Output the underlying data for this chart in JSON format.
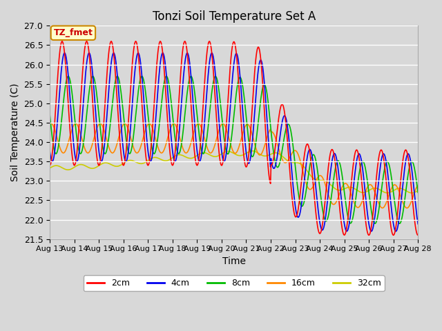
{
  "title": "Tonzi Soil Temperature Set A",
  "xlabel": "Time",
  "ylabel": "Soil Temperature (C)",
  "ylim": [
    21.5,
    27.0
  ],
  "background_color": "#d8d8d8",
  "plot_bg_color": "#d8d8d8",
  "grid_color": "#ffffff",
  "colors": {
    "2cm": "#ff0000",
    "4cm": "#0000ee",
    "8cm": "#00bb00",
    "16cm": "#ff8800",
    "32cm": "#cccc00"
  },
  "legend_label": "TZ_fmet",
  "legend_box_color": "#ffffcc",
  "legend_box_edge": "#cc8800",
  "yticks": [
    21.5,
    22.0,
    22.5,
    23.0,
    23.5,
    24.0,
    24.5,
    25.0,
    25.5,
    26.0,
    26.5,
    27.0
  ]
}
